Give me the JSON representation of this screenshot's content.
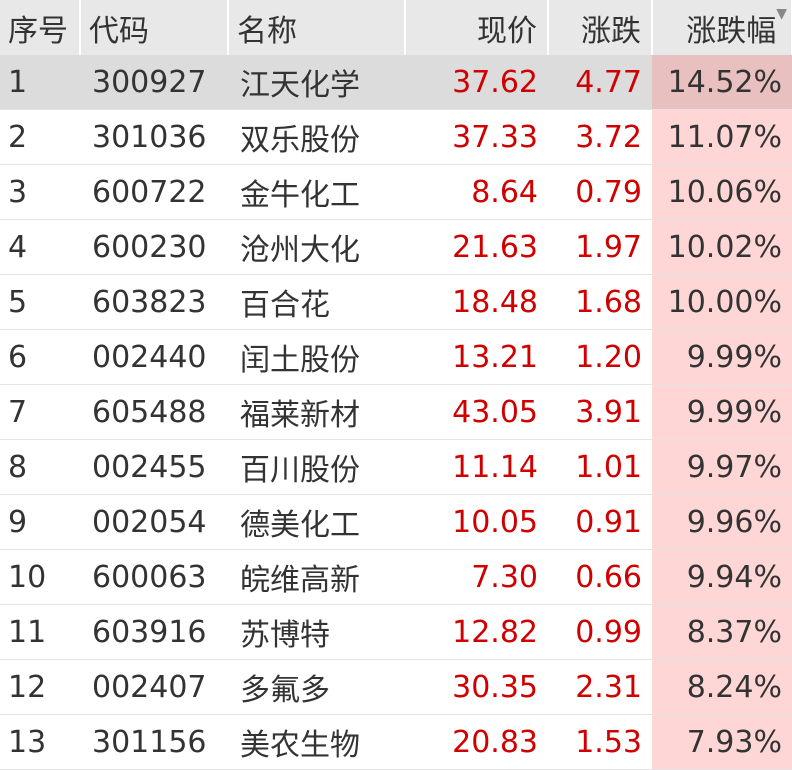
{
  "headers": {
    "index": "序号",
    "code": "代码",
    "name": "名称",
    "price": "现价",
    "change": "涨跌",
    "pct": "涨跌幅",
    "sort_icon": "sort-down-icon"
  },
  "colors": {
    "up": "#d00000",
    "pct_bg": "#ffd6d6",
    "selected_bg": "#dcdcdc"
  },
  "selected_row": 0,
  "rows": [
    {
      "i": "1",
      "code": "300927",
      "name": "江天化学",
      "price": "37.62",
      "change": "4.77",
      "pct": "14.52%"
    },
    {
      "i": "2",
      "code": "301036",
      "name": "双乐股份",
      "price": "37.33",
      "change": "3.72",
      "pct": "11.07%"
    },
    {
      "i": "3",
      "code": "600722",
      "name": "金牛化工",
      "price": "8.64",
      "change": "0.79",
      "pct": "10.06%"
    },
    {
      "i": "4",
      "code": "600230",
      "name": "沧州大化",
      "price": "21.63",
      "change": "1.97",
      "pct": "10.02%"
    },
    {
      "i": "5",
      "code": "603823",
      "name": "百合花",
      "price": "18.48",
      "change": "1.68",
      "pct": "10.00%"
    },
    {
      "i": "6",
      "code": "002440",
      "name": "闰土股份",
      "price": "13.21",
      "change": "1.20",
      "pct": "9.99%"
    },
    {
      "i": "7",
      "code": "605488",
      "name": "福莱新材",
      "price": "43.05",
      "change": "3.91",
      "pct": "9.99%"
    },
    {
      "i": "8",
      "code": "002455",
      "name": "百川股份",
      "price": "11.14",
      "change": "1.01",
      "pct": "9.97%"
    },
    {
      "i": "9",
      "code": "002054",
      "name": "德美化工",
      "price": "10.05",
      "change": "0.91",
      "pct": "9.96%"
    },
    {
      "i": "10",
      "code": "600063",
      "name": "皖维高新",
      "price": "7.30",
      "change": "0.66",
      "pct": "9.94%"
    },
    {
      "i": "11",
      "code": "603916",
      "name": "苏博特",
      "price": "12.82",
      "change": "0.99",
      "pct": "8.37%"
    },
    {
      "i": "12",
      "code": "002407",
      "name": "多氟多",
      "price": "30.35",
      "change": "2.31",
      "pct": "8.24%"
    },
    {
      "i": "13",
      "code": "301156",
      "name": "美农生物",
      "price": "20.83",
      "change": "1.53",
      "pct": "7.93%"
    }
  ]
}
